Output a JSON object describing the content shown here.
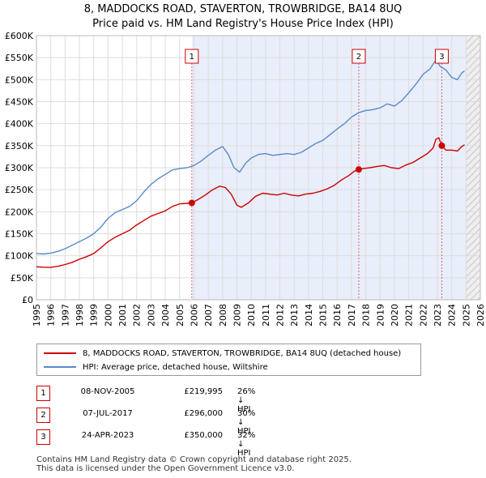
{
  "header": {
    "title_line1": "8, MADDOCKS ROAD, STAVERTON, TROWBRIDGE, BA14 8UQ",
    "title_line2": "Price paid vs. HM Land Registry's House Price Index (HPI)"
  },
  "colors": {
    "price_line": "#cc0000",
    "hpi_line": "#5b8ac8",
    "band_fill": "#e8eefa",
    "grid": "#dddddd",
    "marker_line": "#e06060"
  },
  "chart_data": {
    "type": "line",
    "x_ticks": [
      "1995",
      "1996",
      "1997",
      "1998",
      "1999",
      "2000",
      "2001",
      "2002",
      "2003",
      "2004",
      "2005",
      "2006",
      "2007",
      "2008",
      "2009",
      "2010",
      "2011",
      "2012",
      "2013",
      "2014",
      "2015",
      "2016",
      "2017",
      "2018",
      "2019",
      "2020",
      "2021",
      "2022",
      "2023",
      "2024",
      "2025",
      "2026"
    ],
    "y_ticks": [
      "£0",
      "£50K",
      "£100K",
      "£150K",
      "£200K",
      "£250K",
      "£300K",
      "£350K",
      "£400K",
      "£450K",
      "£500K",
      "£550K",
      "£600K"
    ],
    "xlim": [
      1995,
      2026
    ],
    "ylim": [
      0,
      600000
    ],
    "shaded_from": 2005.85,
    "hatch_from": 2025.0,
    "series": [
      {
        "name": "8, MADDOCKS ROAD, STAVERTON, TROWBRIDGE, BA14 8UQ (detached house)",
        "x": [
          1995,
          1995.5,
          1996,
          1996.5,
          1997,
          1997.5,
          1998,
          1998.5,
          1999,
          1999.5,
          2000,
          2000.5,
          2001,
          2001.5,
          2002,
          2002.5,
          2003,
          2003.5,
          2004,
          2004.5,
          2005,
          2005.5,
          2005.85,
          2006.3,
          2006.8,
          2007.3,
          2007.8,
          2008.2,
          2008.6,
          2009.0,
          2009.3,
          2009.8,
          2010.3,
          2010.8,
          2011.3,
          2011.8,
          2012.3,
          2012.8,
          2013.3,
          2013.8,
          2014.3,
          2014.8,
          2015.3,
          2015.8,
          2016.3,
          2016.8,
          2017.2,
          2017.51,
          2017.8,
          2018.3,
          2018.8,
          2019.3,
          2019.8,
          2020.3,
          2020.8,
          2021.3,
          2021.8,
          2022.3,
          2022.7,
          2022.9,
          2023.1,
          2023.31,
          2023.6,
          2024.0,
          2024.4,
          2024.7,
          2024.9
        ],
        "values": [
          75000,
          74000,
          73500,
          76000,
          80000,
          85000,
          92000,
          98000,
          105000,
          118000,
          132000,
          142000,
          150000,
          158000,
          170000,
          180000,
          190000,
          196000,
          202000,
          212000,
          218000,
          219000,
          219995,
          228000,
          238000,
          250000,
          258000,
          255000,
          240000,
          215000,
          210000,
          220000,
          235000,
          242000,
          240000,
          238000,
          242000,
          238000,
          236000,
          240000,
          242000,
          246000,
          252000,
          260000,
          272000,
          282000,
          292000,
          296000,
          298000,
          300000,
          303000,
          305000,
          300000,
          298000,
          306000,
          312000,
          322000,
          332000,
          345000,
          365000,
          368000,
          350000,
          340000,
          340000,
          338000,
          348000,
          352000
        ]
      },
      {
        "name": "HPI: Average price, detached house, Wiltshire",
        "x": [
          1995,
          1995.5,
          1996,
          1996.5,
          1997,
          1997.5,
          1998,
          1998.5,
          1999,
          1999.5,
          2000,
          2000.5,
          2001,
          2001.5,
          2002,
          2002.5,
          2003,
          2003.5,
          2004,
          2004.5,
          2005,
          2005.5,
          2006,
          2006.5,
          2007,
          2007.5,
          2008,
          2008.4,
          2008.8,
          2009.2,
          2009.6,
          2010,
          2010.5,
          2011,
          2011.5,
          2012,
          2012.5,
          2013,
          2013.5,
          2014,
          2014.5,
          2015,
          2015.5,
          2016,
          2016.5,
          2017,
          2017.5,
          2018,
          2018.5,
          2019,
          2019.5,
          2020,
          2020.5,
          2021,
          2021.5,
          2022,
          2022.5,
          2022.9,
          2023.2,
          2023.6,
          2024,
          2024.4,
          2024.7,
          2024.9
        ],
        "values": [
          105000,
          104000,
          106000,
          110000,
          116000,
          124000,
          132000,
          140000,
          150000,
          165000,
          185000,
          198000,
          205000,
          212000,
          225000,
          245000,
          262000,
          275000,
          285000,
          295000,
          298000,
          300000,
          305000,
          315000,
          328000,
          340000,
          348000,
          330000,
          300000,
          290000,
          310000,
          322000,
          330000,
          332000,
          328000,
          330000,
          332000,
          330000,
          335000,
          345000,
          355000,
          362000,
          375000,
          388000,
          400000,
          415000,
          425000,
          430000,
          432000,
          436000,
          445000,
          440000,
          452000,
          470000,
          490000,
          512000,
          525000,
          545000,
          530000,
          522000,
          505000,
          500000,
          515000,
          520000
        ]
      }
    ],
    "sales": [
      {
        "num": "1",
        "x": 2005.85,
        "value": 219995
      },
      {
        "num": "2",
        "x": 2017.51,
        "value": 296000
      },
      {
        "num": "3",
        "x": 2023.31,
        "value": 350000
      }
    ]
  },
  "legend": {
    "price_label": "8, MADDOCKS ROAD, STAVERTON, TROWBRIDGE, BA14 8UQ (detached house)",
    "hpi_label": "HPI: Average price, detached house, Wiltshire"
  },
  "sales_table": [
    {
      "num": "1",
      "date": "08-NOV-2005",
      "price": "£219,995",
      "hpi": "26% ↓ HPI"
    },
    {
      "num": "2",
      "date": "07-JUL-2017",
      "price": "£296,000",
      "hpi": "30% ↓ HPI"
    },
    {
      "num": "3",
      "date": "24-APR-2023",
      "price": "£350,000",
      "hpi": "32% ↓ HPI"
    }
  ],
  "footer": {
    "line1": "Contains HM Land Registry data © Crown copyright and database right 2025.",
    "line2": "This data is licensed under the Open Government Licence v3.0."
  }
}
